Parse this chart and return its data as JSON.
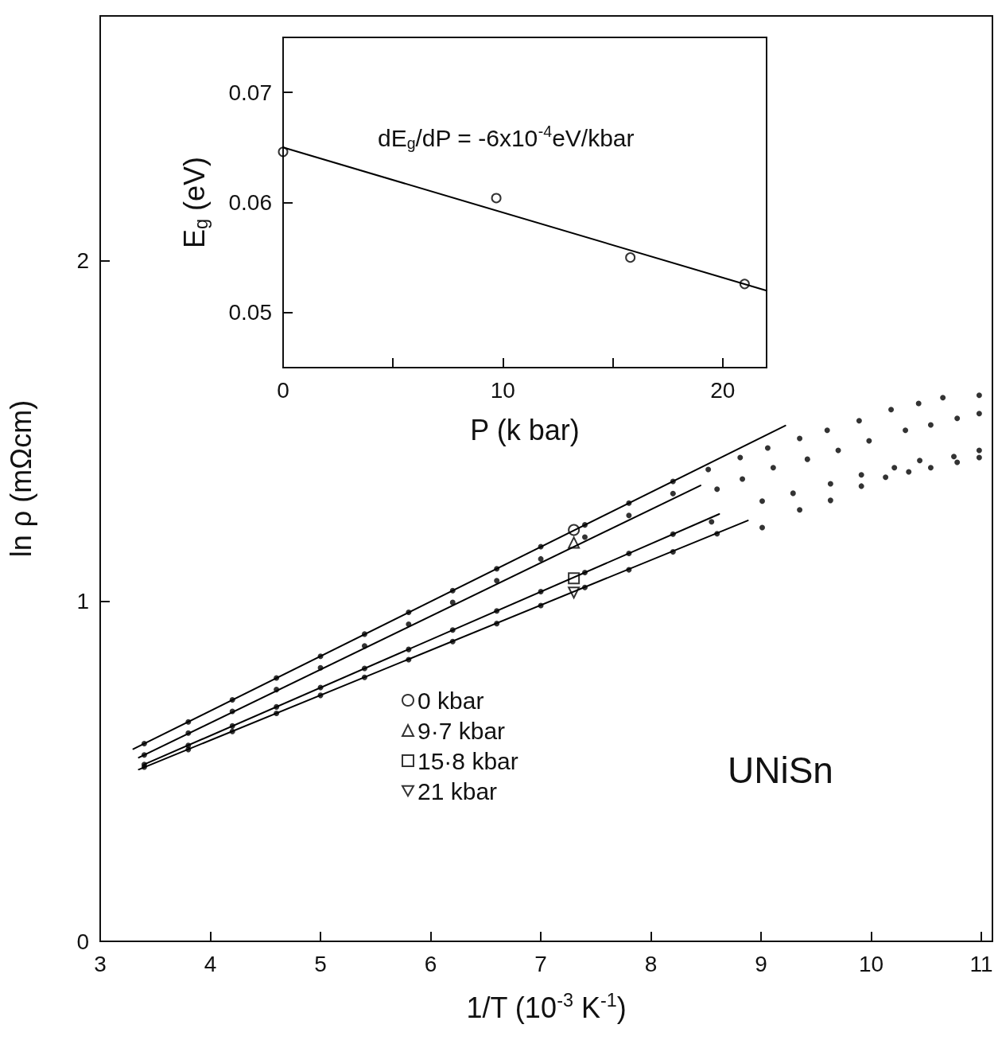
{
  "chart_data": [
    {
      "type": "scatter",
      "xlabel": "1/T (10$^{-3}$ K$^{-1}$)",
      "ylabel": "ln ρ (mΩcm)",
      "xlim": [
        3,
        11.1
      ],
      "ylim": [
        0,
        2.72
      ],
      "xticks": [
        3,
        4,
        5,
        6,
        7,
        8,
        9,
        10,
        11
      ],
      "yticks": [
        0,
        1,
        2
      ],
      "legend": "bottom",
      "annotations": [
        "UNiSn"
      ],
      "series": [
        {
          "marker": "circle",
          "color": "#000000",
          "x": [
            3.4,
            3.8,
            4.2,
            4.6,
            5.0,
            5.4,
            5.8,
            6.2,
            6.6,
            7.0,
            7.4,
            7.8,
            8.2,
            8.52,
            8.81,
            9.06,
            9.35,
            9.6,
            9.89,
            10.18,
            10.43,
            10.65,
            10.98
          ],
          "values": [
            0.581,
            0.645,
            0.71,
            0.774,
            0.838,
            0.903,
            0.967,
            1.031,
            1.095,
            1.16,
            1.224,
            1.288,
            1.352,
            1.387,
            1.422,
            1.45,
            1.478,
            1.502,
            1.53,
            1.563,
            1.581,
            1.598,
            1.605
          ]
        },
        {
          "type": "line",
          "marker": "none",
          "color": "#000000",
          "x": [
            3.3,
            9.22
          ],
          "values": [
            0.565,
            1.516
          ]
        },
        {
          "name": "0 kbar",
          "marker": "circle",
          "color": "#000000",
          "x": [
            7.3
          ],
          "values": [
            1.209
          ]
        },
        {
          "marker": "circle",
          "color": "#000000",
          "x": [
            3.4,
            3.8,
            4.2,
            4.6,
            5.0,
            5.4,
            5.8,
            6.2,
            6.6,
            7.0,
            7.4,
            7.8,
            8.2,
            8.6,
            8.83,
            9.11,
            9.42,
            9.7,
            9.98,
            10.31,
            10.54,
            10.78,
            10.98
          ],
          "values": [
            0.548,
            0.612,
            0.676,
            0.74,
            0.804,
            0.868,
            0.932,
            0.996,
            1.06,
            1.124,
            1.188,
            1.252,
            1.316,
            1.329,
            1.359,
            1.392,
            1.417,
            1.443,
            1.471,
            1.502,
            1.518,
            1.537,
            1.551
          ]
        },
        {
          "type": "line",
          "marker": "none",
          "color": "#000000",
          "x": [
            3.35,
            8.45
          ],
          "values": [
            0.54,
            1.34
          ]
        },
        {
          "name": "9·7 kbar",
          "marker": "triangle",
          "color": "#000000",
          "x": [
            7.3
          ],
          "values": [
            1.172
          ]
        },
        {
          "marker": "circle",
          "color": "#000000",
          "x": [
            3.4,
            3.8,
            4.2,
            4.6,
            5.0,
            5.4,
            5.8,
            6.2,
            6.6,
            7.0,
            7.4,
            7.8,
            8.2,
            8.55,
            9.01,
            9.29,
            9.63,
            9.91,
            10.21,
            10.44,
            10.75,
            10.98
          ],
          "values": [
            0.52,
            0.576,
            0.633,
            0.689,
            0.746,
            0.802,
            0.858,
            0.915,
            0.971,
            1.028,
            1.084,
            1.14,
            1.197,
            1.233,
            1.294,
            1.317,
            1.345,
            1.371,
            1.392,
            1.413,
            1.425,
            1.443
          ]
        },
        {
          "type": "line",
          "marker": "none",
          "color": "#000000",
          "x": [
            3.4,
            8.62
          ],
          "values": [
            0.52,
            1.256
          ]
        },
        {
          "name": "15·8 kbar",
          "marker": "square",
          "color": "#000000",
          "x": [
            7.3
          ],
          "values": [
            1.067
          ]
        },
        {
          "marker": "circle",
          "color": "#000000",
          "x": [
            3.4,
            3.8,
            4.2,
            4.6,
            5.0,
            5.4,
            5.8,
            6.2,
            6.6,
            7.0,
            7.4,
            7.8,
            8.2,
            8.6,
            9.01,
            9.35,
            9.63,
            9.91,
            10.13,
            10.34,
            10.54,
            10.78,
            10.98
          ],
          "values": [
            0.512,
            0.564,
            0.617,
            0.67,
            0.723,
            0.776,
            0.828,
            0.881,
            0.934,
            0.987,
            1.04,
            1.092,
            1.145,
            1.198,
            1.216,
            1.268,
            1.296,
            1.338,
            1.364,
            1.38,
            1.392,
            1.408,
            1.422
          ]
        },
        {
          "type": "line",
          "marker": "none",
          "color": "#000000",
          "x": [
            3.35,
            8.88
          ],
          "values": [
            0.505,
            1.237
          ]
        },
        {
          "name": "21 kbar",
          "marker": "triangle_down",
          "color": "#000000",
          "x": [
            7.3
          ],
          "values": [
            1.025
          ]
        }
      ]
    },
    {
      "type": "scatter",
      "xlabel": "P (k bar)",
      "ylabel": "E$_{g}$ (eV)",
      "xlim": [
        0,
        22
      ],
      "ylim": [
        0.045,
        0.075
      ],
      "xticks": [
        0,
        {
          "value": 5,
          "label": null
        },
        10,
        {
          "value": 15,
          "label": null
        },
        20
      ],
      "yticks": [
        0.05,
        0.06,
        0.07
      ],
      "annotations": [
        "dE$_{g}$/dP = -6x10$^{-4}$eV/kbar"
      ],
      "series": [
        {
          "marker": "circle",
          "color": "#000000",
          "x": [
            0,
            9.7,
            15.8,
            21
          ],
          "values": [
            0.0646,
            0.0604,
            0.055,
            0.0526
          ]
        },
        {
          "type": "line",
          "marker": "none",
          "color": "#000000",
          "x": [
            0,
            22
          ],
          "values": [
            0.065,
            0.052
          ]
        }
      ]
    }
  ]
}
